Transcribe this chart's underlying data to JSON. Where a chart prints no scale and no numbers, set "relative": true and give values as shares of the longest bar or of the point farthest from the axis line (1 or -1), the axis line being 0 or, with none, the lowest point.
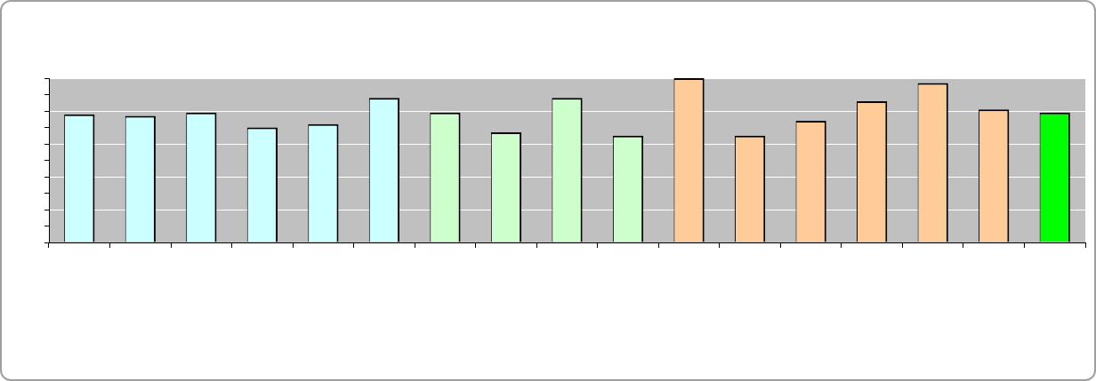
{
  "chart_data": {
    "type": "bar",
    "relative": true,
    "grid": "y",
    "categories": [
      null,
      null,
      null,
      null,
      null,
      null,
      null,
      null,
      null,
      null,
      null,
      null,
      null,
      null,
      null,
      null,
      null
    ],
    "values": [
      0.78,
      0.77,
      0.79,
      0.7,
      0.72,
      0.88,
      0.79,
      0.67,
      0.88,
      0.65,
      1,
      0.65,
      0.74,
      0.86,
      0.97,
      0.81,
      0.79
    ],
    "colors": [
      "#ccffff",
      "#ccffff",
      "#ccffff",
      "#ccffff",
      "#ccffff",
      "#ccffff",
      "#ccffcc",
      "#ccffcc",
      "#ccffcc",
      "#ccffcc",
      "#ffcc99",
      "#ffcc99",
      "#ffcc99",
      "#ffcc99",
      "#ffcc99",
      "#ffcc99",
      "#00ff00"
    ]
  }
}
